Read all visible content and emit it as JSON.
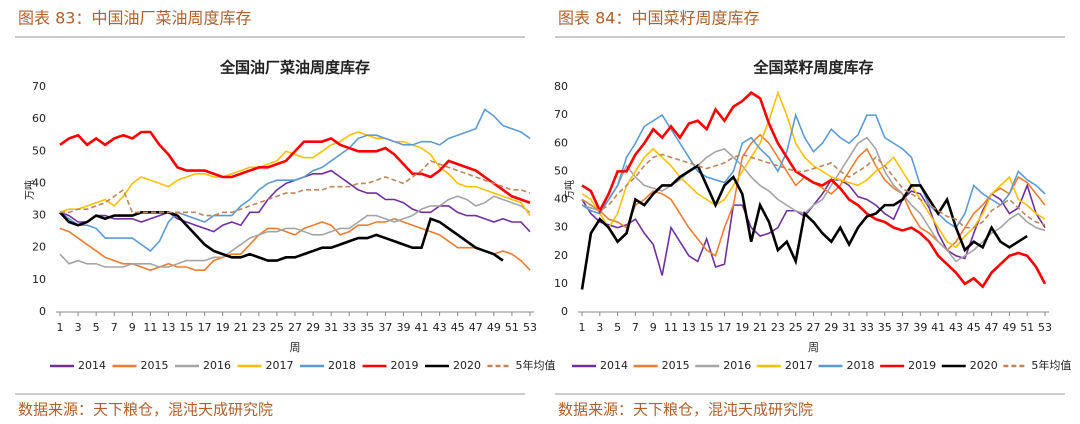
{
  "chart_data": [
    {
      "type": "line",
      "figure_caption": "图表 83：中国油厂菜油周度库存",
      "title": "全国油厂菜油周度库存",
      "source": "数据来源：天下粮仓，混沌天成研究院",
      "ylabel": "万吨",
      "xlabel": "周",
      "x": [
        1,
        2,
        3,
        4,
        5,
        6,
        7,
        8,
        9,
        10,
        11,
        12,
        13,
        14,
        15,
        16,
        17,
        18,
        19,
        20,
        21,
        22,
        23,
        24,
        25,
        26,
        27,
        28,
        29,
        30,
        31,
        32,
        33,
        34,
        35,
        36,
        37,
        38,
        39,
        40,
        41,
        42,
        43,
        44,
        45,
        46,
        47,
        48,
        49,
        50,
        51,
        52,
        53
      ],
      "xlim": [
        1,
        53
      ],
      "xticks": [
        1,
        3,
        5,
        7,
        9,
        11,
        13,
        15,
        17,
        19,
        21,
        23,
        25,
        27,
        29,
        31,
        33,
        35,
        37,
        39,
        41,
        43,
        45,
        47,
        49,
        51,
        53
      ],
      "ylim": [
        0,
        70
      ],
      "yticks": [
        0,
        10,
        20,
        30,
        40,
        50,
        60,
        70
      ],
      "series": [
        {
          "name": "2014",
          "color": "#7030a0",
          "values": [
            31,
            30,
            28,
            28,
            30,
            30,
            29,
            29,
            29,
            28,
            29,
            30,
            31,
            29,
            28,
            27,
            26,
            25,
            27,
            28,
            27,
            31,
            31,
            35,
            38,
            40,
            41,
            42,
            43,
            43,
            44,
            42,
            40,
            38,
            37,
            37,
            35,
            35,
            34,
            32,
            31,
            31,
            33,
            33,
            31,
            30,
            30,
            29,
            28,
            29,
            28,
            28,
            25
          ]
        },
        {
          "name": "2015",
          "color": "#ed7d31",
          "values": [
            26,
            25,
            23,
            21,
            19,
            17,
            16,
            15,
            15,
            14,
            13,
            14,
            15,
            14,
            14,
            13,
            13,
            16,
            17,
            18,
            18,
            21,
            24,
            26,
            26,
            25,
            24,
            26,
            27,
            28,
            27,
            24,
            25,
            27,
            27,
            28,
            28,
            29,
            28,
            27,
            26,
            25,
            24,
            22,
            20,
            20,
            20,
            19,
            18,
            19,
            18,
            16,
            13
          ]
        },
        {
          "name": "2016",
          "color": "#a5a5a5",
          "values": [
            18,
            15,
            16,
            15,
            15,
            14,
            14,
            14,
            15,
            15,
            15,
            14,
            14,
            15,
            16,
            16,
            16,
            17,
            17,
            19,
            21,
            23,
            24,
            25,
            25,
            26,
            26,
            25,
            24,
            24,
            25,
            26,
            26,
            28,
            30,
            30,
            29,
            28,
            29,
            30,
            32,
            33,
            33,
            35,
            36,
            35,
            33,
            34,
            36,
            35,
            34,
            33,
            31
          ]
        },
        {
          "name": "2017",
          "color": "#ffc000",
          "values": [
            31,
            32,
            32,
            33,
            34,
            35,
            33,
            36,
            40,
            42,
            41,
            40,
            39,
            41,
            42,
            43,
            43,
            42,
            42,
            43,
            44,
            45,
            45,
            46,
            47,
            50,
            49,
            48,
            48,
            50,
            52,
            53,
            55,
            56,
            55,
            54,
            54,
            53,
            53,
            52,
            51,
            49,
            45,
            43,
            40,
            39,
            39,
            38,
            37,
            36,
            35,
            34,
            30
          ]
        },
        {
          "name": "2018",
          "color": "#5b9bd5",
          "values": [
            31,
            29,
            27,
            27,
            26,
            23,
            23,
            23,
            23,
            21,
            19,
            22,
            28,
            31,
            30,
            29,
            28,
            30,
            30,
            30,
            33,
            35,
            38,
            40,
            41,
            41,
            41,
            42,
            44,
            45,
            47,
            49,
            51,
            54,
            55,
            55,
            54,
            53,
            52,
            52,
            53,
            53,
            52,
            54,
            55,
            56,
            57,
            63,
            61,
            58,
            57,
            56,
            54
          ]
        },
        {
          "name": "2019",
          "color": "#ff0000",
          "values": [
            52,
            54,
            55,
            52,
            54,
            52,
            54,
            55,
            54,
            56,
            56,
            52,
            49,
            45,
            44,
            44,
            44,
            43,
            42,
            42,
            43,
            44,
            45,
            45,
            46,
            47,
            50,
            53,
            53,
            53,
            54,
            52,
            51,
            50,
            50,
            50,
            51,
            49,
            46,
            43,
            43,
            42,
            44,
            47,
            46,
            45,
            44,
            42,
            40,
            38,
            36,
            35,
            34
          ]
        },
        {
          "name": "2020",
          "color": "#000000",
          "values": [
            31,
            28,
            27,
            28,
            30,
            29,
            30,
            30,
            30,
            31,
            31,
            31,
            31,
            30,
            27,
            24,
            21,
            19,
            18,
            17,
            17,
            18,
            17,
            16,
            16,
            17,
            17,
            18,
            19,
            20,
            20,
            21,
            22,
            23,
            23,
            24,
            23,
            22,
            21,
            20,
            20,
            29,
            28,
            26,
            24,
            22,
            20,
            19,
            18,
            16,
            null,
            null,
            null
          ]
        },
        {
          "name": "5年均值",
          "color": "#c0855a",
          "dashed": true,
          "values": [
            31,
            31,
            32,
            32,
            33,
            34,
            36,
            38,
            31,
            31,
            31,
            31,
            31,
            31,
            31,
            31,
            30,
            30,
            31,
            31,
            32,
            33,
            34,
            35,
            36,
            37,
            37,
            38,
            38,
            38,
            39,
            39,
            39,
            40,
            40,
            41,
            42,
            41,
            40,
            42,
            44,
            47,
            46,
            45,
            44,
            43,
            42,
            41,
            40,
            39,
            38,
            38,
            37
          ]
        }
      ]
    },
    {
      "type": "line",
      "figure_caption": "图表 84：中国菜籽周度库存",
      "title": "全国菜籽周度库存",
      "source": "数据来源：天下粮仓，混沌天成研究院",
      "ylabel": "万吨",
      "xlabel": "周",
      "x": [
        1,
        2,
        3,
        4,
        5,
        6,
        7,
        8,
        9,
        10,
        11,
        12,
        13,
        14,
        15,
        16,
        17,
        18,
        19,
        20,
        21,
        22,
        23,
        24,
        25,
        26,
        27,
        28,
        29,
        30,
        31,
        32,
        33,
        34,
        35,
        36,
        37,
        38,
        39,
        40,
        41,
        42,
        43,
        44,
        45,
        46,
        47,
        48,
        49,
        50,
        51,
        52,
        53
      ],
      "xlim": [
        1,
        53
      ],
      "xticks": [
        1,
        3,
        5,
        7,
        9,
        11,
        13,
        15,
        17,
        19,
        21,
        23,
        25,
        27,
        29,
        31,
        33,
        35,
        37,
        39,
        41,
        43,
        45,
        47,
        49,
        51,
        53
      ],
      "ylim": [
        0,
        80
      ],
      "yticks": [
        0,
        10,
        20,
        30,
        40,
        50,
        60,
        70,
        80
      ],
      "series": [
        {
          "name": "2014",
          "color": "#7030a0",
          "values": [
            40,
            35,
            32,
            31,
            30,
            31,
            33,
            28,
            24,
            13,
            30,
            25,
            20,
            18,
            26,
            16,
            17,
            38,
            38,
            30,
            27,
            28,
            30,
            36,
            36,
            34,
            38,
            42,
            47,
            47,
            45,
            41,
            40,
            38,
            35,
            33,
            40,
            43,
            42,
            37,
            28,
            22,
            20,
            19,
            28,
            36,
            42,
            40,
            35,
            37,
            45,
            35,
            30
          ]
        },
        {
          "name": "2015",
          "color": "#ed7d31",
          "values": [
            40,
            38,
            36,
            33,
            32,
            30,
            38,
            40,
            43,
            42,
            40,
            35,
            30,
            26,
            22,
            20,
            30,
            38,
            55,
            60,
            63,
            60,
            55,
            50,
            45,
            48,
            46,
            44,
            42,
            45,
            50,
            55,
            58,
            52,
            47,
            44,
            42,
            35,
            30,
            28,
            25,
            22,
            25,
            30,
            35,
            38,
            42,
            44,
            42,
            48,
            46,
            42,
            38
          ]
        },
        {
          "name": "2016",
          "color": "#a5a5a5",
          "values": [
            38,
            37,
            36,
            40,
            45,
            52,
            48,
            45,
            44,
            43,
            45,
            47,
            50,
            52,
            55,
            57,
            58,
            55,
            52,
            48,
            45,
            43,
            40,
            38,
            36,
            35,
            38,
            40,
            45,
            50,
            55,
            60,
            62,
            58,
            50,
            45,
            42,
            38,
            35,
            30,
            25,
            22,
            18,
            20,
            22,
            25,
            28,
            30,
            33,
            35,
            32,
            30,
            29
          ]
        },
        {
          "name": "2017",
          "color": "#ffc000",
          "values": [
            42,
            40,
            35,
            30,
            35,
            45,
            50,
            55,
            58,
            55,
            52,
            48,
            45,
            42,
            40,
            38,
            40,
            45,
            50,
            55,
            60,
            68,
            78,
            70,
            60,
            55,
            52,
            50,
            48,
            47,
            46,
            45,
            47,
            50,
            52,
            55,
            50,
            45,
            40,
            35,
            30,
            25,
            23,
            27,
            30,
            35,
            42,
            45,
            48,
            40,
            38,
            35,
            33
          ]
        },
        {
          "name": "2018",
          "color": "#5b9bd5",
          "values": [
            38,
            36,
            35,
            40,
            45,
            55,
            60,
            66,
            68,
            70,
            65,
            60,
            55,
            50,
            48,
            47,
            46,
            50,
            60,
            62,
            58,
            55,
            50,
            57,
            70,
            62,
            57,
            60,
            65,
            62,
            60,
            63,
            70,
            70,
            62,
            60,
            58,
            55,
            45,
            38,
            35,
            32,
            30,
            35,
            45,
            42,
            40,
            38,
            42,
            50,
            47,
            45,
            42
          ]
        },
        {
          "name": "2019",
          "color": "#ff0000",
          "values": [
            45,
            43,
            36,
            42,
            50,
            50,
            56,
            60,
            65,
            62,
            66,
            62,
            67,
            68,
            65,
            72,
            68,
            73,
            75,
            78,
            76,
            67,
            60,
            55,
            50,
            48,
            46,
            45,
            47,
            44,
            40,
            38,
            35,
            33,
            32,
            30,
            29,
            30,
            28,
            25,
            20,
            17,
            14,
            10,
            12,
            9,
            14,
            17,
            20,
            21,
            20,
            16,
            10
          ]
        },
        {
          "name": "2020",
          "color": "#000000",
          "values": [
            8,
            28,
            33,
            30,
            25,
            28,
            40,
            38,
            42,
            45,
            45,
            48,
            50,
            52,
            45,
            38,
            45,
            48,
            42,
            25,
            38,
            32,
            22,
            25,
            18,
            35,
            32,
            28,
            25,
            30,
            24,
            30,
            34,
            35,
            38,
            38,
            40,
            45,
            45,
            40,
            35,
            40,
            30,
            22,
            25,
            23,
            30,
            25,
            23,
            25,
            27,
            null,
            null
          ]
        },
        {
          "name": "5年均值",
          "color": "#c0855a",
          "dashed": true,
          "values": [
            40,
            38,
            36,
            38,
            42,
            45,
            48,
            52,
            55,
            56,
            55,
            54,
            53,
            52,
            51,
            52,
            53,
            55,
            56,
            55,
            54,
            53,
            52,
            51,
            50,
            50,
            51,
            52,
            53,
            50,
            48,
            50,
            52,
            55,
            52,
            48,
            44,
            42,
            40,
            38,
            36,
            34,
            33,
            30,
            30,
            32,
            36,
            38,
            40,
            37,
            34,
            32,
            31
          ]
        }
      ]
    }
  ]
}
